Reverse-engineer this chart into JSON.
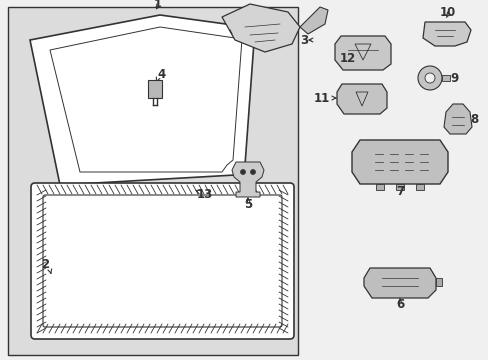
{
  "bg_color": "#f0f0f0",
  "panel_bg": "#dcdcdc",
  "white": "#ffffff",
  "lc": "#333333",
  "part_fill": "#c8c8c8",
  "part_fill2": "#b8b8b8",
  "fig_w": 4.89,
  "fig_h": 3.6,
  "dpi": 100
}
